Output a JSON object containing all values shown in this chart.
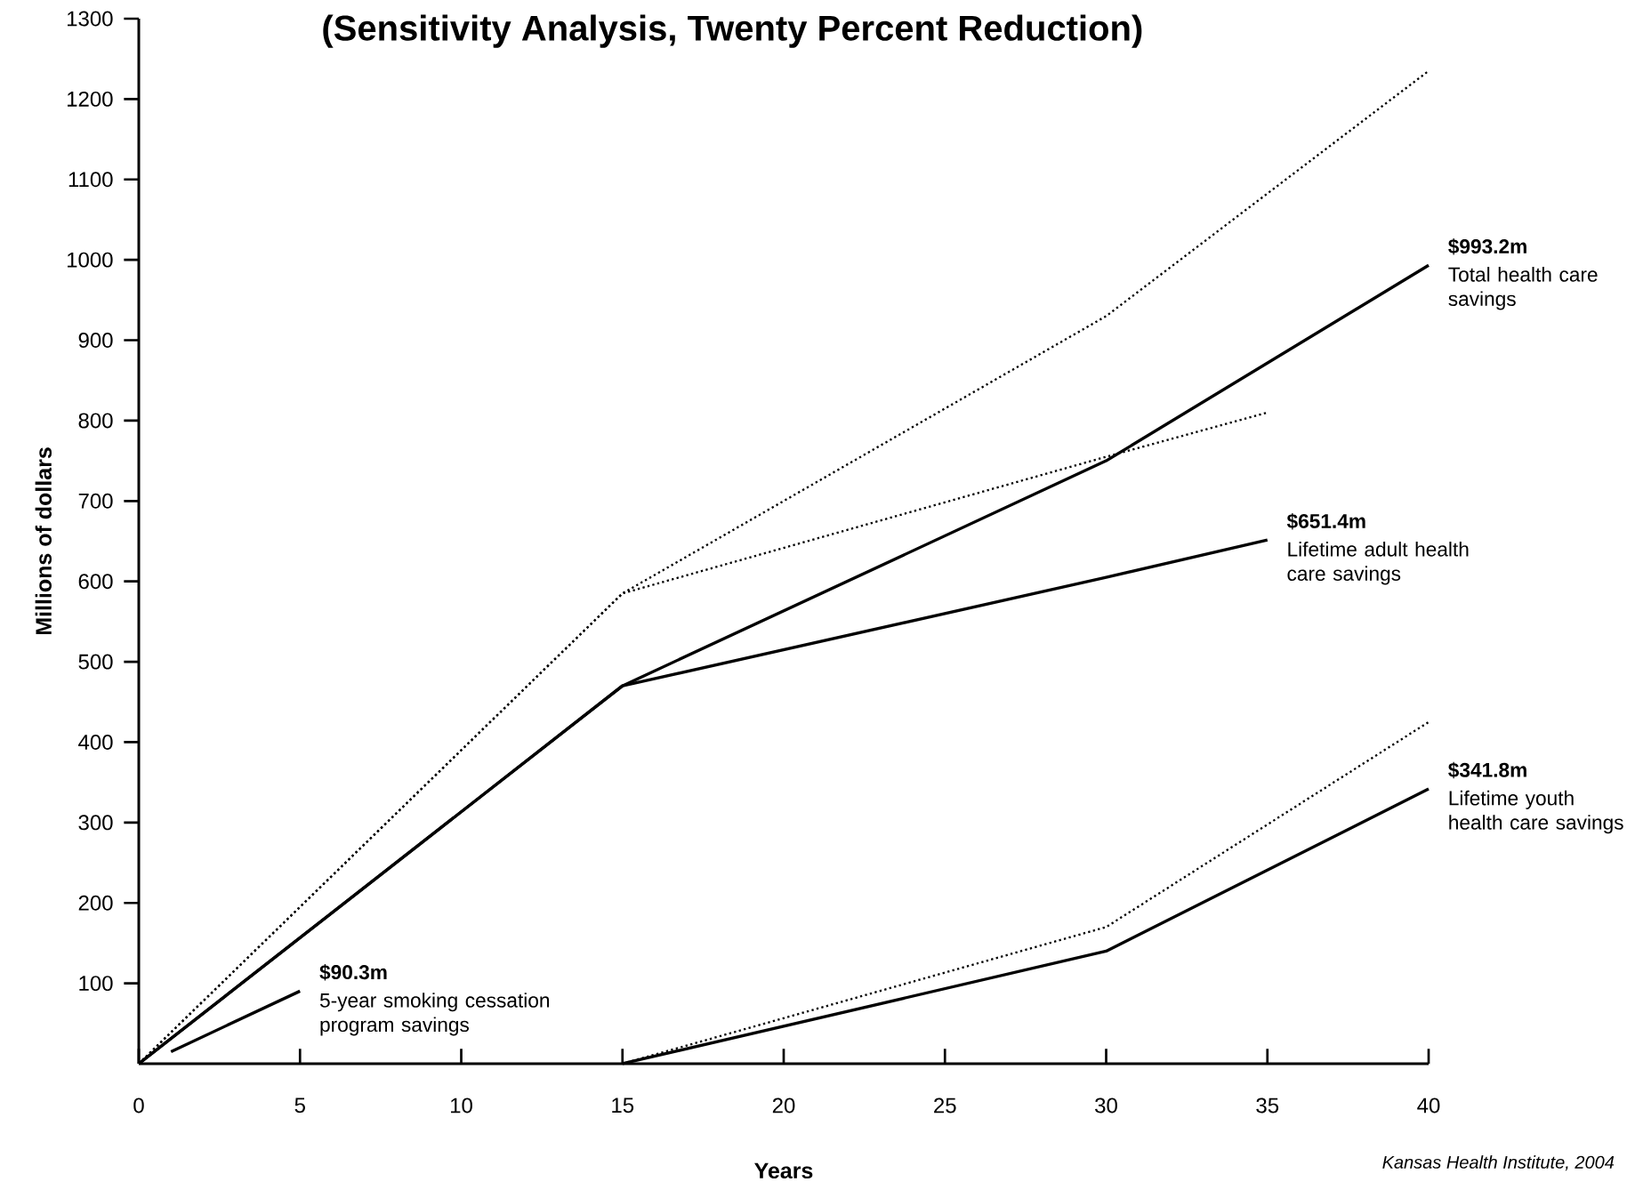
{
  "chart_data": {
    "type": "line",
    "title": "(Sensitivity Analysis, Twenty Percent Reduction)",
    "xlabel": "Years",
    "ylabel": "Millions of dollars",
    "xlim": [
      0,
      40
    ],
    "ylim": [
      0,
      1300
    ],
    "xticks": [
      0,
      5,
      10,
      15,
      20,
      25,
      30,
      35,
      40
    ],
    "yticks": [
      100,
      200,
      300,
      400,
      500,
      600,
      700,
      800,
      900,
      1000,
      1100,
      1200,
      1300
    ],
    "series": [
      {
        "name": "Total health care savings",
        "color": "#000000",
        "line_style": "solid",
        "x": [
          0,
          15,
          30,
          40
        ],
        "values": [
          0,
          470,
          750,
          993.2
        ]
      },
      {
        "color": "#000000",
        "line_style": "dotted",
        "x": [
          0,
          15,
          30,
          40
        ],
        "values": [
          0,
          585,
          930,
          1235
        ]
      },
      {
        "name": "Lifetime adult health care savings",
        "color": "#000000",
        "line_style": "solid",
        "x": [
          0,
          15,
          30,
          35
        ],
        "values": [
          0,
          470,
          605,
          651.4
        ]
      },
      {
        "color": "#000000",
        "line_style": "dotted",
        "x": [
          0,
          15,
          30,
          35
        ],
        "values": [
          0,
          585,
          755,
          810
        ]
      },
      {
        "name": "Lifetime youth health care savings",
        "color": "#000000",
        "line_style": "solid",
        "x": [
          15,
          30,
          40
        ],
        "values": [
          0,
          140,
          341.8
        ]
      },
      {
        "color": "#000000",
        "line_style": "dotted",
        "x": [
          15,
          30,
          40
        ],
        "values": [
          0,
          170,
          425
        ]
      },
      {
        "name": "5-year smoking cessation program savings",
        "color": "#000000",
        "line_style": "solid",
        "x": [
          1,
          5
        ],
        "values": [
          15,
          90.3
        ]
      }
    ],
    "annotations": [
      {
        "text": "$993.2m",
        "x": 40,
        "y": 993.2
      },
      {
        "text": "$651.4m",
        "x": 35,
        "y": 651.4
      },
      {
        "text": "$341.8m",
        "x": 40,
        "y": 341.8
      },
      {
        "text": "$90.3m",
        "x": 5,
        "y": 90.3
      },
      "Kansas Health Institute, 2004"
    ]
  }
}
